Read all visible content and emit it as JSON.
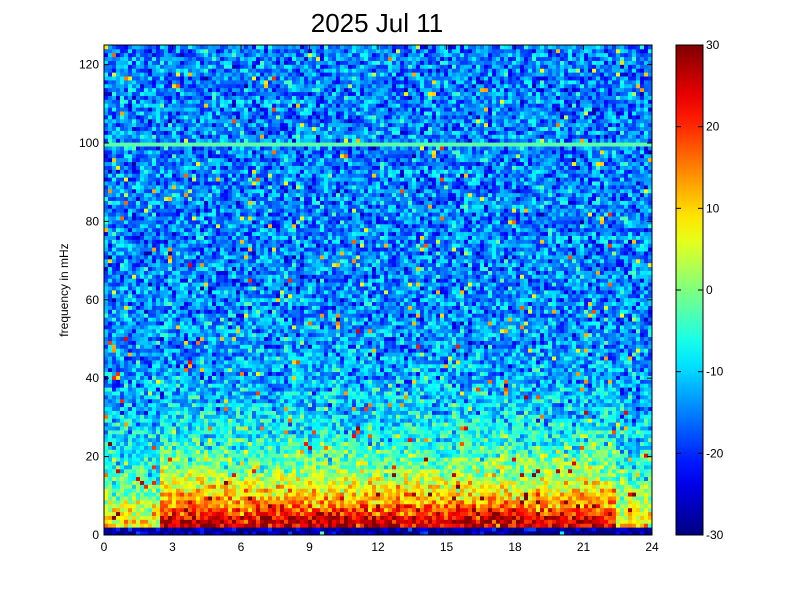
{
  "chart_data": {
    "type": "heatmap",
    "title": "2025 Jul 11",
    "xlabel": "",
    "ylabel": "frequency in mHz",
    "xlim": [
      0,
      24
    ],
    "ylim": [
      0,
      125
    ],
    "x_ticks": [
      "0",
      "3",
      "6",
      "9",
      "12",
      "15",
      "18",
      "21",
      "24"
    ],
    "y_ticks": [
      "0",
      "20",
      "40",
      "60",
      "80",
      "100",
      "120"
    ],
    "colorbar": {
      "colormap": "jet",
      "range": [
        -30,
        30
      ],
      "ticks": [
        "-30",
        "-20",
        "-10",
        "0",
        "10",
        "20",
        "30"
      ]
    },
    "grid": false,
    "colors": {
      "background": "#ffffff",
      "low": "#00007f",
      "mid": "#7fff7f",
      "high": "#7f0000"
    },
    "features": {
      "low_frequency_band_mhz": [
        2,
        10
      ],
      "low_frequency_band_level": 25,
      "flat_line_frequency_mhz": 100,
      "flat_line_level": -2,
      "background_level_high_freq": -15
    }
  }
}
